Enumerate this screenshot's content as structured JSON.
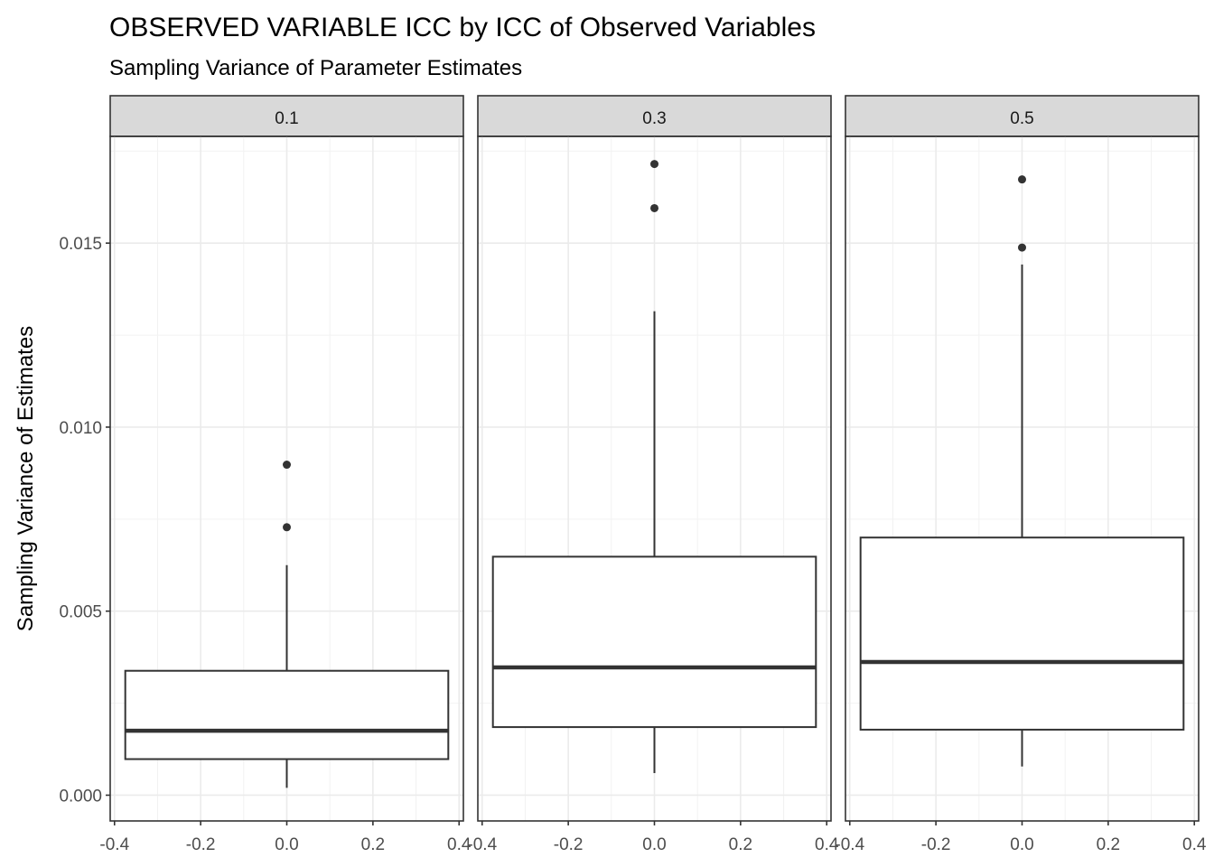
{
  "chart_data": {
    "type": "box",
    "title": "OBSERVED VARIABLE ICC by ICC of Observed Variables",
    "subtitle": "Sampling Variance of Parameter Estimates",
    "xlabel": "",
    "ylabel": "Sampling Variance of Estimates",
    "ylim": [
      -0.0007,
      0.0179
    ],
    "xlim": [
      -0.41,
      0.41
    ],
    "y_ticks": [
      0.0,
      0.005,
      0.01,
      0.015
    ],
    "y_tick_labels": [
      "0.000",
      "0.005",
      "0.010",
      "0.015"
    ],
    "x_ticks": [
      -0.4,
      -0.2,
      0.0,
      0.2,
      0.4
    ],
    "x_tick_labels": [
      "-0.4",
      "-0.2",
      "0.0",
      "0.2",
      "0.4"
    ],
    "grid": true,
    "facets": [
      {
        "label": "0.1",
        "box": {
          "xmin": -0.375,
          "xmax": 0.375,
          "lower_whisker": 0.0002,
          "q1": 0.00098,
          "median": 0.00175,
          "q3": 0.00338,
          "upper_whisker": 0.00625
        },
        "outliers": [
          0.00728,
          0.00898
        ]
      },
      {
        "label": "0.3",
        "box": {
          "xmin": -0.375,
          "xmax": 0.375,
          "lower_whisker": 0.0006,
          "q1": 0.00185,
          "median": 0.00347,
          "q3": 0.00648,
          "upper_whisker": 0.01315
        },
        "outliers": [
          0.01595,
          0.01715
        ]
      },
      {
        "label": "0.5",
        "box": {
          "xmin": -0.375,
          "xmax": 0.375,
          "lower_whisker": 0.00078,
          "q1": 0.00178,
          "median": 0.00362,
          "q3": 0.007,
          "upper_whisker": 0.01442
        },
        "outliers": [
          0.01488,
          0.01673
        ]
      }
    ]
  }
}
